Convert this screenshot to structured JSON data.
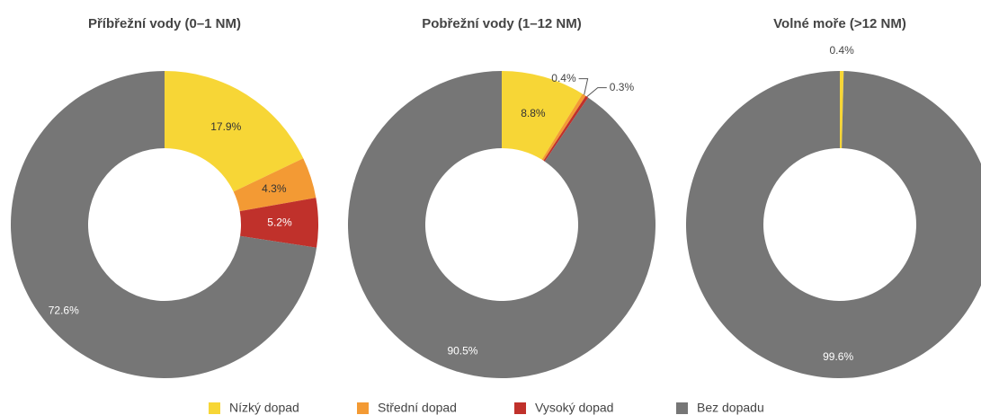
{
  "chart_data": [
    {
      "type": "pie",
      "title": "Příbřežní vody (0–1 NM)",
      "categories": [
        "Nízký dopad",
        "Střední dopad",
        "Vysoký dopad",
        "Bez dopadu"
      ],
      "colors": [
        "#f7d636",
        "#f39a34",
        "#c0312b",
        "#767676"
      ],
      "values": [
        17.9,
        4.3,
        5.2,
        72.6
      ],
      "value_labels": [
        "17.9%",
        "4.3%",
        "5.2%",
        "72.6%"
      ]
    },
    {
      "type": "pie",
      "title": "Pobřežní vody (1–12 NM)",
      "categories": [
        "Nízký dopad",
        "Střední dopad",
        "Vysoký dopad",
        "Bez dopadu"
      ],
      "colors": [
        "#f7d636",
        "#f39a34",
        "#c0312b",
        "#767676"
      ],
      "values": [
        8.8,
        0.4,
        0.3,
        90.5
      ],
      "value_labels": [
        "8.8%",
        "0.4%",
        "0.3%",
        "90.5%"
      ]
    },
    {
      "type": "pie",
      "title": "Volné moře (>12 NM)",
      "categories": [
        "Nízký dopad",
        "Střední dopad",
        "Vysoký dopad",
        "Bez dopadu"
      ],
      "colors": [
        "#f7d636",
        "#f39a34",
        "#c0312b",
        "#767676"
      ],
      "values": [
        0.4,
        0,
        0,
        99.6
      ],
      "value_labels": [
        "0.4%",
        null,
        null,
        "99.6%"
      ]
    }
  ]
}
